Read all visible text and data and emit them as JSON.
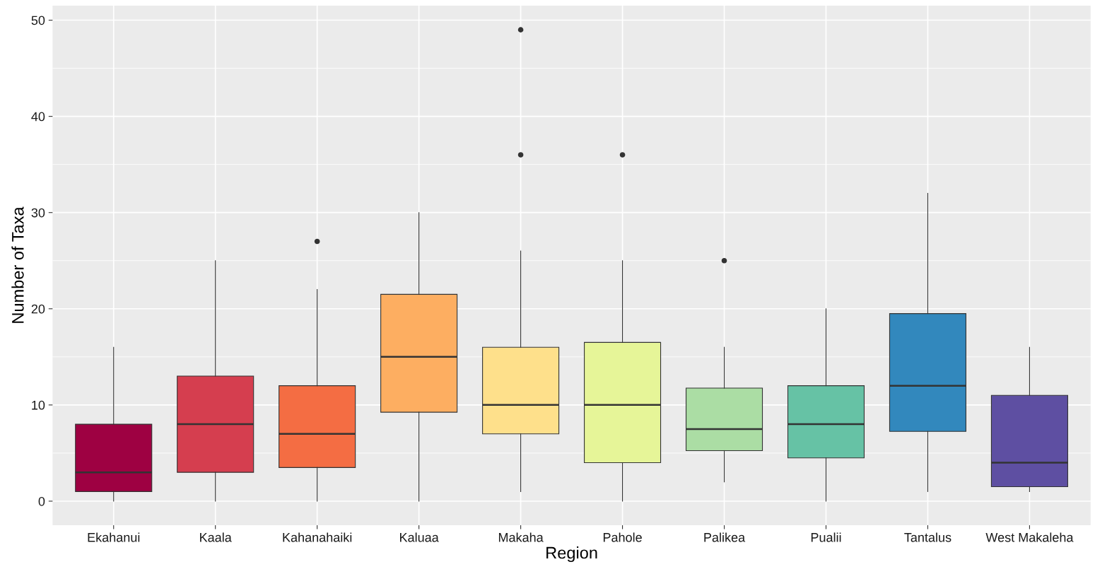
{
  "chart_data": {
    "type": "box",
    "xlabel": "Region",
    "ylabel": "Number of Taxa",
    "categories": [
      "Ekahanui",
      "Kaala",
      "Kahanahaiki",
      "Kaluaa",
      "Makaha",
      "Pahole",
      "Palikea",
      "Pualii",
      "Tantalus",
      "West Makaleha"
    ],
    "colors": [
      "#9e0142",
      "#d53e4f",
      "#f46d43",
      "#fdae61",
      "#fee08b",
      "#e6f598",
      "#abdda4",
      "#66c2a5",
      "#3288bd",
      "#5e4fa2"
    ],
    "boxes": [
      {
        "low": 0,
        "q1": 1,
        "median": 3,
        "q3": 8,
        "high": 16
      },
      {
        "low": 0,
        "q1": 3,
        "median": 8,
        "q3": 13,
        "high": 25
      },
      {
        "low": 0,
        "q1": 3.5,
        "median": 7,
        "q3": 12,
        "high": 22,
        "outliers": [
          27
        ]
      },
      {
        "low": 0,
        "q1": 9.25,
        "median": 15,
        "q3": 21.5,
        "high": 30
      },
      {
        "low": 1,
        "q1": 7,
        "median": 10,
        "q3": 16,
        "high": 26,
        "outliers": [
          36,
          49
        ]
      },
      {
        "low": 0,
        "q1": 4,
        "median": 10,
        "q3": 16.5,
        "high": 25,
        "outliers": [
          36
        ]
      },
      {
        "low": 2,
        "q1": 5.25,
        "median": 7.5,
        "q3": 11.75,
        "high": 16,
        "outliers": [
          25
        ]
      },
      {
        "low": 0,
        "q1": 4.5,
        "median": 8,
        "q3": 12,
        "high": 20
      },
      {
        "low": 1,
        "q1": 7.25,
        "median": 12,
        "q3": 19.5,
        "high": 32
      },
      {
        "low": 1,
        "q1": 1.5,
        "median": 4,
        "q3": 11,
        "high": 16
      }
    ],
    "ylim": [
      -2.5,
      51.5
    ],
    "yticks": [
      0,
      10,
      20,
      30,
      40,
      50
    ],
    "grid": true,
    "legend": false
  }
}
